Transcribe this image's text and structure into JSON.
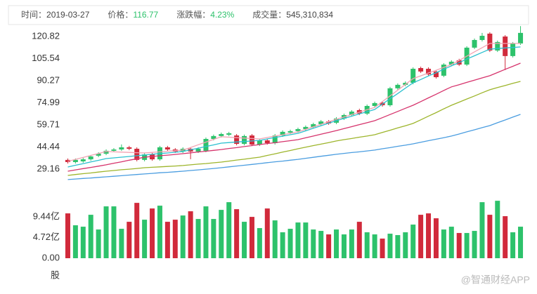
{
  "header": {
    "items": [
      {
        "label": "时间：",
        "value": "2019-03-27"
      },
      {
        "label": "价格：",
        "value": "116.77"
      },
      {
        "label": "涨跌幅：",
        "value": "4.23%"
      },
      {
        "label": "成交量：",
        "value": "545,310,834"
      }
    ]
  },
  "watermark": "@智通财经APP",
  "chart_data": [
    {
      "type": "candlestick",
      "up_color": "#2dc26b",
      "down_color": "#d12a3b",
      "ylim": [
        20.9,
        129.07
      ],
      "yticks": [
        29.16,
        44.44,
        59.71,
        74.99,
        90.27,
        105.54,
        120.82
      ],
      "open": [
        35.5,
        34.0,
        34.5,
        35.9,
        38.4,
        39.8,
        41.8,
        42.7,
        44.2,
        43.2,
        35.5,
        39.3,
        35.9,
        44.2,
        42.7,
        41.3,
        43.2,
        41.3,
        41.8,
        50.0,
        52.0,
        52.9,
        52.4,
        46.6,
        52.4,
        46.1,
        49.0,
        47.1,
        52.4,
        54.4,
        55.4,
        56.8,
        58.3,
        60.2,
        62.1,
        61.2,
        64.1,
        66.5,
        69.9,
        67.5,
        72.8,
        75.2,
        73.3,
        85.0,
        87.4,
        88.8,
        99.0,
        98.5,
        96.6,
        93.7,
        101.4,
        104.4,
        101.4,
        113.1,
        118.4,
        122.8,
        111.1,
        120.8,
        107.3,
        116.0
      ],
      "high": [
        36.5,
        36.5,
        36.9,
        38.9,
        40.8,
        42.8,
        43.7,
        46.2,
        45.2,
        44.2,
        40.3,
        40.3,
        45.2,
        45.2,
        43.7,
        44.2,
        44.2,
        44.2,
        51.0,
        53.0,
        54.4,
        54.9,
        53.4,
        53.0,
        53.4,
        50.0,
        50.0,
        53.4,
        55.9,
        56.4,
        57.8,
        59.3,
        61.2,
        63.1,
        63.1,
        65.1,
        67.5,
        69.9,
        70.9,
        73.8,
        75.8,
        76.2,
        86.0,
        88.4,
        89.8,
        99.5,
        100.0,
        99.5,
        97.6,
        102.4,
        104.4,
        105.4,
        114.1,
        119.4,
        123.3,
        123.8,
        118.0,
        121.8,
        117.0,
        128.0
      ],
      "low": [
        33.0,
        33.0,
        33.5,
        34.9,
        37.4,
        38.8,
        40.8,
        41.7,
        42.2,
        34.5,
        34.5,
        34.9,
        34.9,
        41.7,
        40.3,
        40.3,
        36.0,
        40.3,
        40.8,
        49.0,
        51.0,
        51.9,
        45.6,
        45.6,
        45.1,
        45.1,
        46.1,
        46.1,
        51.4,
        53.4,
        54.4,
        55.8,
        57.3,
        59.2,
        59.7,
        60.2,
        63.1,
        65.5,
        66.5,
        66.5,
        71.8,
        72.3,
        72.3,
        84.0,
        86.4,
        87.8,
        95.6,
        93.6,
        91.7,
        92.7,
        100.4,
        100.4,
        100.4,
        112.1,
        117.4,
        110.1,
        110.1,
        97.6,
        106.3,
        115.0
      ],
      "close": [
        34.0,
        35.5,
        35.9,
        37.9,
        39.8,
        41.8,
        42.7,
        44.2,
        43.2,
        35.5,
        39.3,
        35.9,
        44.2,
        42.7,
        41.3,
        43.2,
        41.3,
        43.2,
        50.0,
        52.0,
        53.4,
        53.9,
        46.6,
        52.0,
        46.1,
        49.0,
        47.1,
        52.4,
        54.9,
        55.4,
        56.8,
        58.3,
        60.2,
        62.1,
        60.7,
        64.1,
        66.5,
        68.9,
        67.5,
        72.8,
        74.8,
        73.3,
        85.0,
        87.4,
        88.8,
        98.5,
        96.6,
        94.6,
        92.7,
        101.4,
        103.4,
        101.4,
        113.1,
        118.4,
        121.3,
        111.1,
        117.0,
        107.3,
        116.0,
        123.3
      ],
      "series": [
        {
          "color": "#f2a3b3",
          "values": [
            34.5,
            35.9,
            37.2,
            38.6,
            39.9,
            41.3,
            41.1,
            40.9,
            40.7,
            40.5,
            40.3,
            40.7,
            41.1,
            41.5,
            41.9,
            42.3,
            44.1,
            46.0,
            47.8,
            49.7,
            51.5,
            51.2,
            50.9,
            50.6,
            50.3,
            50.0,
            51.0,
            52.0,
            52.9,
            53.9,
            54.9,
            56.6,
            58.4,
            60.1,
            61.9,
            63.6,
            65.2,
            66.9,
            68.5,
            70.2,
            71.8,
            75.8,
            79.8,
            83.7,
            87.7,
            91.7,
            93.6,
            95.6,
            97.5,
            99.5,
            101.4,
            104.3,
            107.2,
            110.2,
            113.1,
            116.0,
            116.0,
            116.0,
            116.0,
            116.0
          ]
        },
        {
          "color": "#2bc0cf",
          "values": [
            30.6,
            31.8,
            32.9,
            34.1,
            35.2,
            36.4,
            36.9,
            37.4,
            37.9,
            38.4,
            38.9,
            39.4,
            39.9,
            40.3,
            40.8,
            41.3,
            42.5,
            43.6,
            44.8,
            45.9,
            47.1,
            47.5,
            47.9,
            48.2,
            48.6,
            49.0,
            50.0,
            51.0,
            51.9,
            52.9,
            53.9,
            55.6,
            57.4,
            59.1,
            60.9,
            62.6,
            64.2,
            65.7,
            67.3,
            68.8,
            70.4,
            74.1,
            77.8,
            81.4,
            85.1,
            88.8,
            91.1,
            93.5,
            95.8,
            98.2,
            100.5,
            102.8,
            105.2,
            107.5,
            109.8,
            112.1,
            112.5,
            112.9,
            113.2,
            113.6
          ]
        },
        {
          "color": "#d6336c",
          "values": [
            27.7,
            28.6,
            29.5,
            30.3,
            31.2,
            32.1,
            33.2,
            34.2,
            35.3,
            36.3,
            37.4,
            37.9,
            38.4,
            38.8,
            39.3,
            39.8,
            40.4,
            41.0,
            41.5,
            42.1,
            42.7,
            43.4,
            44.0,
            44.7,
            45.4,
            46.1,
            46.8,
            47.4,
            48.1,
            48.8,
            49.5,
            50.8,
            52.0,
            53.3,
            54.5,
            55.8,
            57.2,
            58.5,
            59.9,
            61.2,
            62.6,
            64.7,
            66.9,
            69.0,
            71.2,
            73.3,
            75.8,
            78.4,
            80.9,
            83.5,
            86.0,
            87.5,
            89.1,
            90.6,
            92.2,
            93.7,
            95.9,
            98.1,
            100.2,
            102.4
          ]
        },
        {
          "color": "#9db52b",
          "values": [
            24.8,
            25.4,
            26.0,
            26.5,
            27.1,
            27.7,
            28.2,
            28.7,
            29.1,
            29.6,
            30.1,
            30.4,
            30.7,
            31.0,
            31.3,
            31.6,
            32.1,
            32.6,
            33.0,
            33.5,
            34.0,
            34.7,
            35.4,
            36.0,
            36.7,
            37.4,
            38.6,
            39.7,
            40.9,
            42.0,
            43.2,
            44.3,
            45.4,
            46.4,
            47.5,
            48.6,
            49.5,
            50.3,
            51.2,
            52.0,
            52.9,
            54.5,
            56.0,
            57.6,
            59.1,
            60.7,
            63.2,
            65.7,
            68.2,
            70.8,
            73.3,
            75.4,
            77.6,
            79.7,
            81.9,
            84.0,
            85.5,
            86.9,
            88.4,
            89.8
          ]
        },
        {
          "color": "#4a9de0",
          "values": [
            21.9,
            22.3,
            22.7,
            23.0,
            23.4,
            23.8,
            24.2,
            24.6,
            25.0,
            25.4,
            25.8,
            26.2,
            26.6,
            26.9,
            27.3,
            27.7,
            28.2,
            28.6,
            29.1,
            29.6,
            30.1,
            30.7,
            31.3,
            31.8,
            32.4,
            33.0,
            33.6,
            34.2,
            34.7,
            35.3,
            35.9,
            36.6,
            37.3,
            38.0,
            38.7,
            39.4,
            40.0,
            40.6,
            41.1,
            41.7,
            42.3,
            43.2,
            44.0,
            44.9,
            45.7,
            46.6,
            47.7,
            48.8,
            49.8,
            50.9,
            52.0,
            53.4,
            54.9,
            56.3,
            57.8,
            59.2,
            61.2,
            63.1,
            65.1,
            67.0
          ]
        }
      ]
    },
    {
      "type": "bar",
      "ylabel": "股",
      "ylim": [
        0,
        13.3
      ],
      "yticks": [
        {
          "value": 0,
          "label": "0.00"
        },
        {
          "value": 4.72,
          "label": "4.72亿"
        },
        {
          "value": 9.44,
          "label": "9.44亿"
        }
      ],
      "values": [
        10.24,
        7.52,
        7.2,
        9.92,
        6.56,
        11.84,
        11.84,
        6.72,
        8.32,
        12.64,
        8.8,
        11.36,
        12.0,
        8.32,
        8.8,
        9.76,
        10.72,
        8.96,
        11.84,
        8.96,
        11.04,
        12.8,
        11.2,
        8.32,
        9.44,
        6.88,
        11.36,
        8.64,
        5.92,
        6.72,
        8.16,
        8.16,
        6.56,
        6.24,
        5.44,
        6.56,
        5.44,
        6.56,
        8.32,
        5.92,
        5.44,
        4.48,
        5.6,
        5.28,
        5.92,
        7.68,
        9.92,
        10.24,
        9.12,
        6.56,
        7.2,
        5.76,
        5.76,
        6.24,
        12.8,
        9.92,
        13.12,
        9.6,
        5.92,
        7.2
      ]
    }
  ]
}
